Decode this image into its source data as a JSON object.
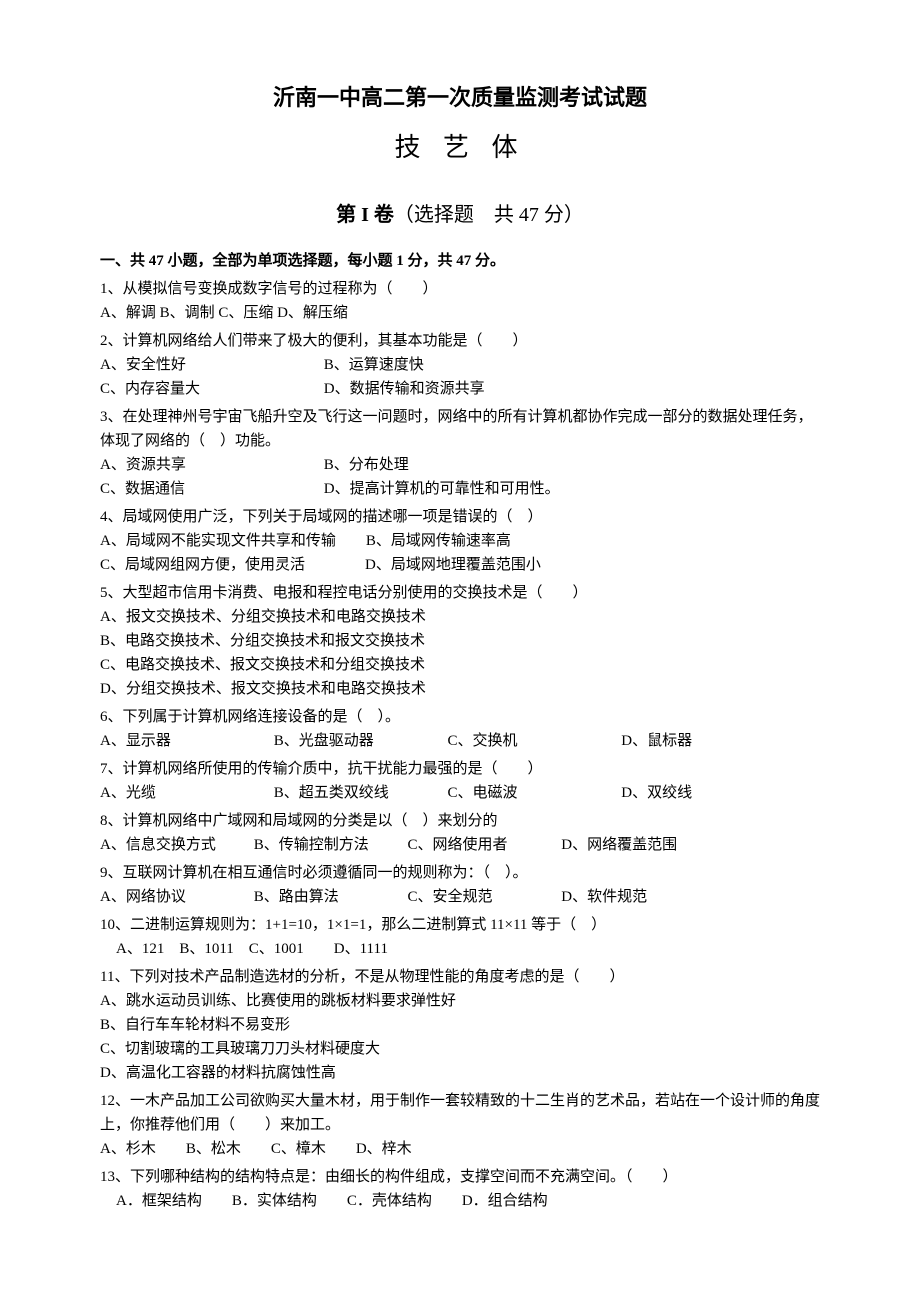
{
  "title": "沂南一中高二第一次质量监测考试试题",
  "subtitle": "技 艺 体",
  "section_label_bold": "第 I 卷",
  "section_label_rest": "（选择题　共 47 分）",
  "instruction": "一、共 47 小题，全部为单项选择题，每小题 1 分，共 47 分。",
  "q1": {
    "stem": "1、从模拟信号变换成数字信号的过程称为（　　）",
    "opts": "A、解调 B、调制 C、压缩 D、解压缩"
  },
  "q2": {
    "stem": "2、计算机网络给人们带来了极大的便利，其基本功能是（　　）",
    "a": "A、安全性好",
    "b": "B、运算速度快",
    "c": "C、内存容量大",
    "d": "D、数据传输和资源共享"
  },
  "q3": {
    "stem": "3、在处理神州号宇宙飞船升空及飞行这一问题时，网络中的所有计算机都协作完成一部分的数据处理任务，体现了网络的（　）功能。",
    "a": "A、资源共享",
    "b": "B、分布处理",
    "c": "C、数据通信",
    "d": "D、提高计算机的可靠性和可用性。"
  },
  "q4": {
    "stem": "4、局域网使用广泛，下列关于局域网的描述哪一项是错误的（　）",
    "line1": "A、局域网不能实现文件共享和传输　　B、局域网传输速率高",
    "line2": "C、局域网组网方便，使用灵活　　　　D、局域网地理覆盖范围小"
  },
  "q5": {
    "stem": "5、大型超市信用卡消费、电报和程控电话分别使用的交换技术是（　　）",
    "a": "A、报文交换技术、分组交换技术和电路交换技术",
    "b": "B、电路交换技术、分组交换技术和报文交换技术",
    "c": "C、电路交换技术、报文交换技术和分组交换技术",
    "d": "D、分组交换技术、报文交换技术和电路交换技术"
  },
  "q6": {
    "stem": "6、下列属于计算机网络连接设备的是（　）。",
    "a": "A、显示器",
    "b": "B、光盘驱动器",
    "c": "C、交换机",
    "d": "D、鼠标器"
  },
  "q7": {
    "stem": "7、计算机网络所使用的传输介质中，抗干扰能力最强的是（　　）",
    "a": "A、光缆",
    "b": "B、超五类双绞线",
    "c": "C、电磁波",
    "d": "D、双绞线"
  },
  "q8": {
    "stem": "8、计算机网络中广域网和局域网的分类是以（　）来划分的",
    "a": "A、信息交换方式",
    "b": "B、传输控制方法",
    "c": "C、网络使用者",
    "d": "D、网络覆盖范围"
  },
  "q9": {
    "stem": "9、互联网计算机在相互通信时必须遵循同一的规则称为：（　）。",
    "a": "A、网络协议",
    "b": "B、路由算法",
    "c": "C、安全规范",
    "d": "D、软件规范"
  },
  "q10": {
    "stem": "10、二进制运算规则为：1+1=10，1×1=1，那么二进制算式 11×11 等于（　）",
    "opts": "A、121　B、1011　C、1001　　D、1111"
  },
  "q11": {
    "stem": "11、下列对技术产品制造选材的分析，不是从物理性能的角度考虑的是（　　）",
    "a": "A、跳水运动员训练、比赛使用的跳板材料要求弹性好",
    "b": "B、自行车车轮材料不易变形",
    "c": "C、切割玻璃的工具玻璃刀刀头材料硬度大",
    "d": "D、高温化工容器的材料抗腐蚀性高"
  },
  "q12": {
    "stem": "12、一木产品加工公司欲购买大量木材，用于制作一套较精致的十二生肖的艺术品，若站在一个设计师的角度上，你推荐他们用（　　）来加工。",
    "opts": "A、杉木　　B、松木　　C、樟木　　D、梓木"
  },
  "q13": {
    "stem": "13、下列哪种结构的结构特点是：由细长的构件组成，支撑空间而不充满空间。（　　）",
    "opts": "A．框架结构　　B．实体结构　　C．壳体结构　　D．组合结构"
  }
}
